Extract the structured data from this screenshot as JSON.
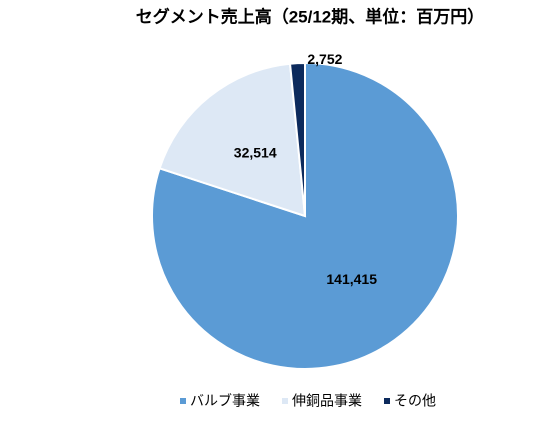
{
  "chart_data": {
    "type": "pie",
    "title": "セグメント売上高（25/12期、単位：百万円）",
    "categories": [
      "バルブ事業",
      "伸銅品事業",
      "その他"
    ],
    "values": [
      141415,
      32514,
      2752
    ],
    "value_labels": [
      "141,415",
      "32,514",
      "2,752"
    ],
    "colors": [
      "#5b9bd5",
      "#dde8f5",
      "#0c2a5c"
    ],
    "legend": "bottom"
  }
}
